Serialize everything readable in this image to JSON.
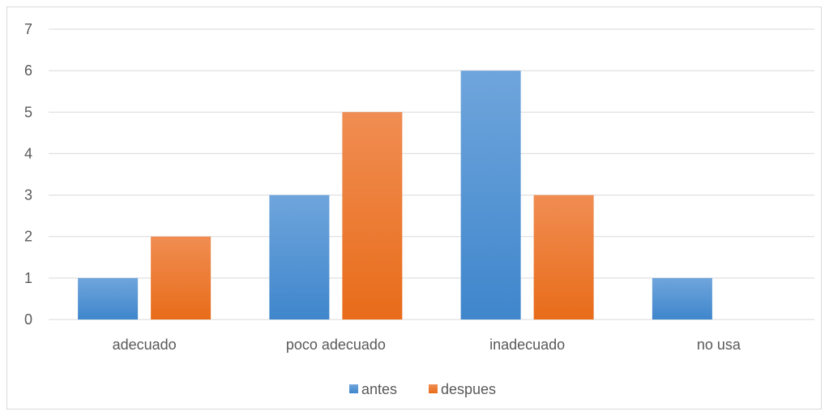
{
  "chart_data": {
    "type": "bar",
    "categories": [
      "adecuado",
      "poco adecuado",
      "inadecuado",
      "no usa"
    ],
    "series": [
      {
        "name": "antes",
        "values": [
          1,
          3,
          6,
          1
        ],
        "color": "#5b9bd5"
      },
      {
        "name": "despues",
        "values": [
          2,
          5,
          3,
          0
        ],
        "color": "#ed7d31"
      }
    ],
    "ylim": [
      0,
      7
    ],
    "yticks": [
      "0",
      "1",
      "2",
      "3",
      "4",
      "5",
      "6",
      "7"
    ],
    "grid": true,
    "legend_position": "bottom-center"
  }
}
